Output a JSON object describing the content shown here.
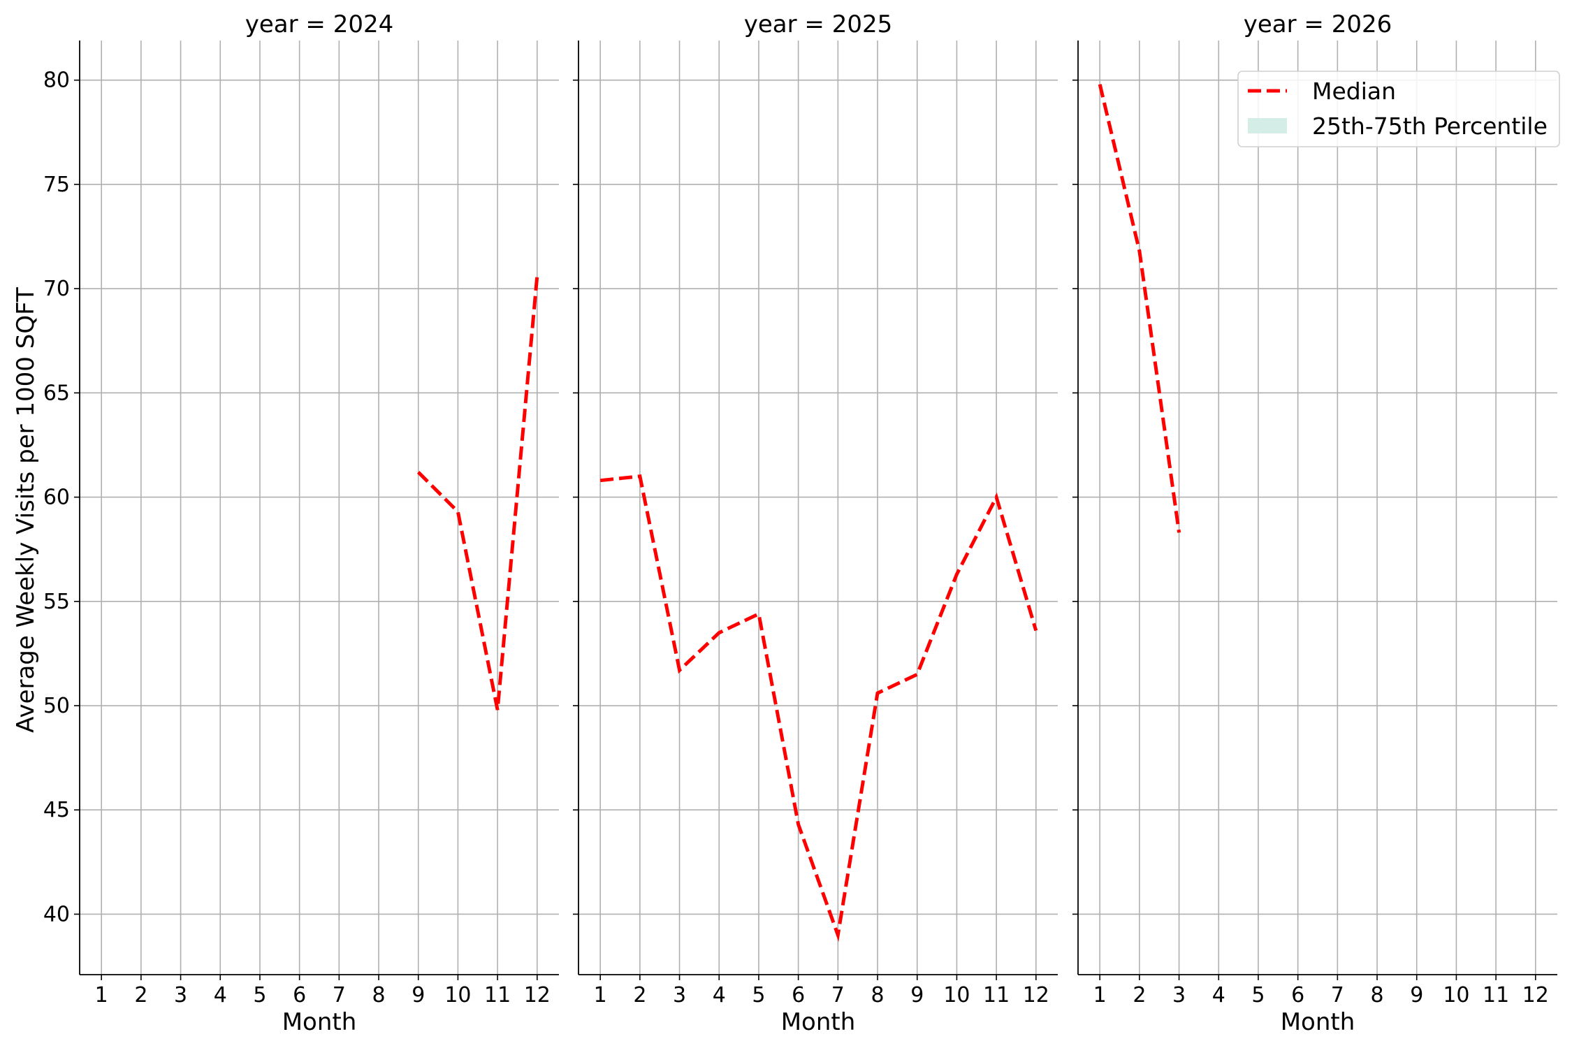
{
  "chart_data": {
    "type": "line",
    "ylabel": "Average Weekly Visits per 1000 SQFT",
    "ylim": [
      37.1,
      81.9
    ],
    "yticks": [
      40,
      45,
      50,
      55,
      60,
      65,
      70,
      75,
      80
    ],
    "xlabel": "Month",
    "xlim": [
      0.45,
      12.55
    ],
    "xticks": [
      1,
      2,
      3,
      4,
      5,
      6,
      7,
      8,
      9,
      10,
      11,
      12
    ],
    "grid": true,
    "median_color": "#ff0000",
    "band_color": "#d4ede6",
    "legend": {
      "placement": "top-right of last panel",
      "entries": [
        {
          "label": "Median",
          "kind": "dashed-line",
          "color": "#ff0000"
        },
        {
          "label": "25th-75th Percentile",
          "kind": "patch",
          "color": "#d4ede6"
        }
      ]
    },
    "panels": [
      {
        "title": "year = 2024",
        "series": [
          {
            "name": "Median",
            "x": [
              9,
              10,
              11,
              12
            ],
            "y": [
              61.2,
              59.3,
              49.8,
              70.6
            ]
          }
        ]
      },
      {
        "title": "year = 2025",
        "series": [
          {
            "name": "Median",
            "x": [
              1,
              2,
              3,
              4,
              5,
              6,
              7,
              8,
              9,
              10,
              11,
              12
            ],
            "y": [
              60.8,
              61.0,
              51.7,
              53.5,
              54.4,
              44.3,
              39.0,
              50.6,
              51.5,
              56.3,
              60.0,
              53.6
            ]
          }
        ]
      },
      {
        "title": "year = 2026",
        "series": [
          {
            "name": "Median",
            "x": [
              1,
              2,
              3
            ],
            "y": [
              79.8,
              71.8,
              58.3
            ]
          }
        ]
      }
    ]
  }
}
